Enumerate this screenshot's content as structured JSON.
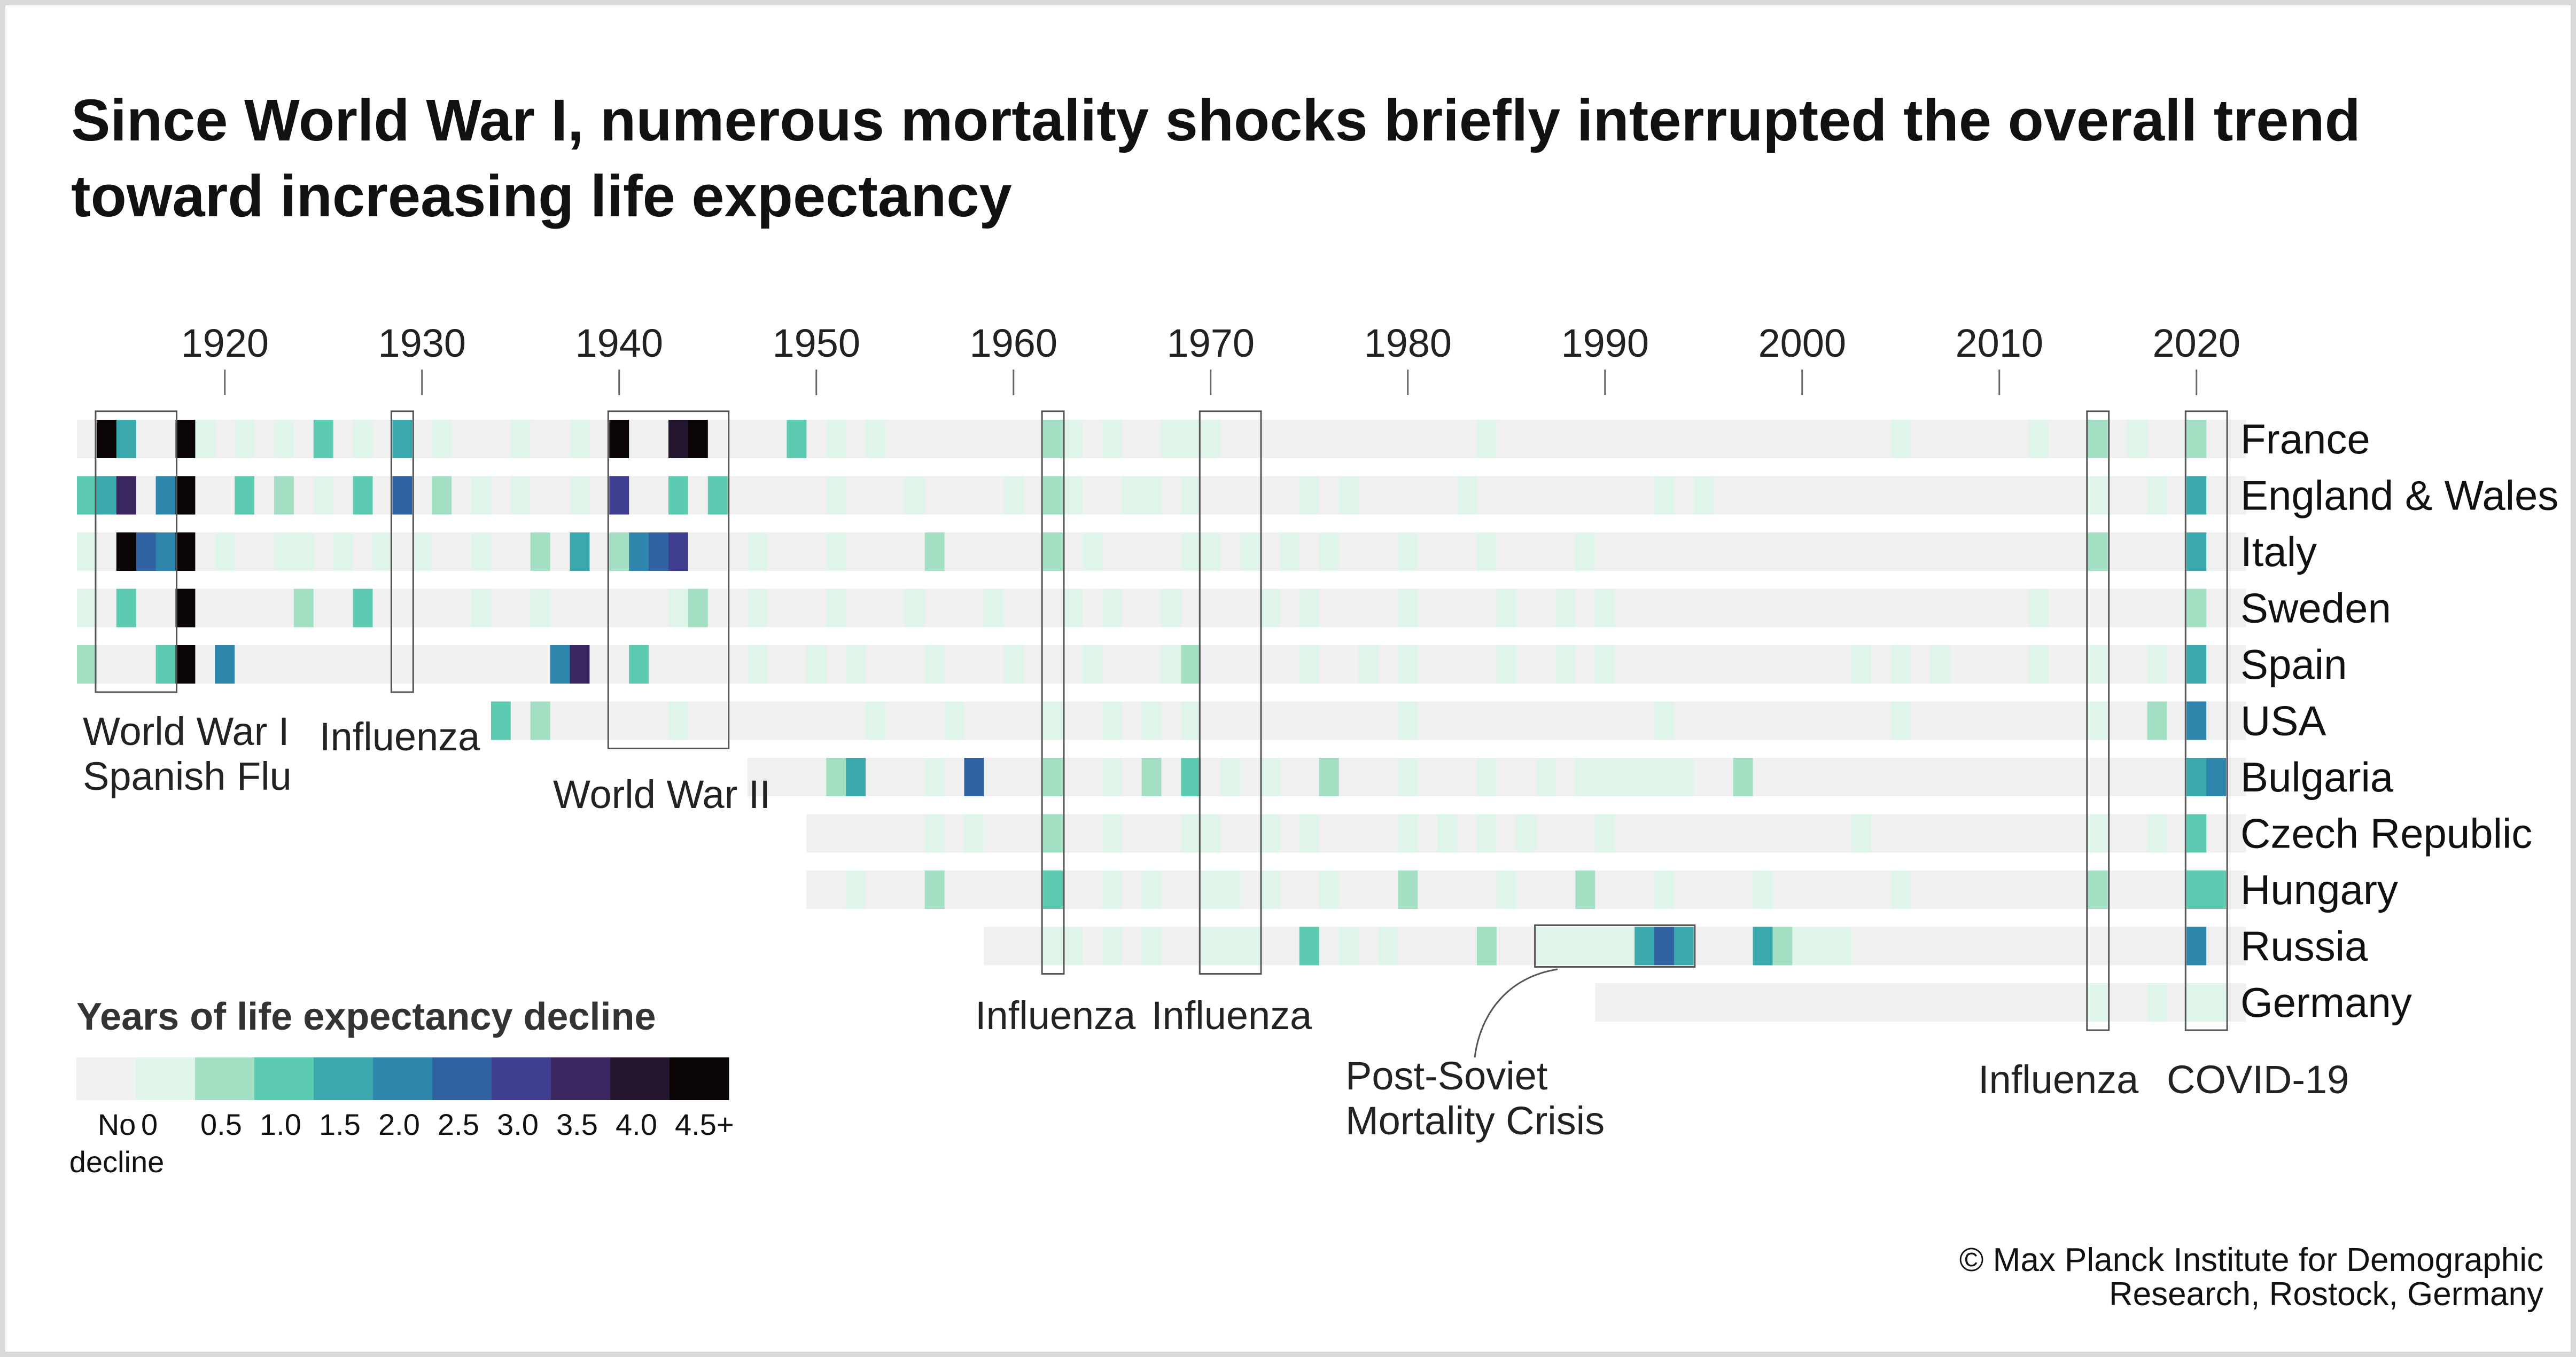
{
  "title": "Since World War I, numerous mortality shocks briefly interrupted the overall trend toward increasing life expectancy",
  "credit": "© Max Planck Institute for Demographic Research, Rostock, Germany",
  "chart_data": {
    "type": "heatmap",
    "x_ticks": [
      1920,
      1930,
      1940,
      1950,
      1960,
      1970,
      1980,
      1990,
      2000,
      2010,
      2020
    ],
    "xlim": [
      1913,
      2022
    ],
    "countries": [
      {
        "name": "France",
        "start": 1913,
        "declines": {
          "1914": 4.5,
          "1915": 1.5,
          "1918": 4.5,
          "1919": 0.0,
          "1921": 0.0,
          "1923": 0.0,
          "1925": 1.0,
          "1927": 0.0,
          "1929": 1.5,
          "1931": 0.0,
          "1935": 0.0,
          "1938": 0.0,
          "1940": 4.5,
          "1943": 4.0,
          "1944": 4.5,
          "1949": 1.0,
          "1951": 0.0,
          "1953": 0.0,
          "1962": 0.5,
          "1963": 0.0,
          "1965": 0.0,
          "1968": 0.0,
          "1969": 0.0,
          "1970": 0.0,
          "1984": 0.0,
          "2005": 0.0,
          "2012": 0.0,
          "2015": 0.5,
          "2017": 0.0,
          "2020": 0.5
        }
      },
      {
        "name": "England & Wales",
        "start": 1913,
        "declines": {
          "1913": 1.0,
          "1914": 1.5,
          "1915": 3.5,
          "1917": 2.0,
          "1918": 4.5,
          "1921": 1.0,
          "1923": 0.5,
          "1925": 0.0,
          "1927": 1.0,
          "1929": 2.5,
          "1931": 0.5,
          "1933": 0.0,
          "1935": 0.0,
          "1938": 0.0,
          "1940": 3.0,
          "1943": 1.0,
          "1945": 1.0,
          "1951": 0.0,
          "1955": 0.0,
          "1960": 0.0,
          "1962": 0.5,
          "1963": 0.0,
          "1966": 0.0,
          "1967": 0.0,
          "1969": 0.0,
          "1975": 0.0,
          "1977": 0.0,
          "1983": 0.0,
          "1993": 0.0,
          "1995": 0.0,
          "2015": 0.0,
          "2018": 0.0,
          "2020": 1.5
        }
      },
      {
        "name": "Italy",
        "start": 1913,
        "declines": {
          "1913": 0.0,
          "1915": 4.5,
          "1916": 2.5,
          "1917": 2.0,
          "1918": 4.5,
          "1920": 0.0,
          "1923": 0.0,
          "1924": 0.0,
          "1926": 0.0,
          "1928": 0.0,
          "1930": 0.0,
          "1933": 0.0,
          "1936": 0.5,
          "1938": 1.5,
          "1940": 0.5,
          "1941": 2.0,
          "1942": 2.5,
          "1943": 3.0,
          "1947": 0.0,
          "1951": 0.0,
          "1956": 0.5,
          "1962": 0.5,
          "1964": 0.0,
          "1969": 0.0,
          "1970": 0.0,
          "1972": 0.0,
          "1974": 0.0,
          "1976": 0.0,
          "1980": 0.0,
          "1984": 0.0,
          "1989": 0.0,
          "2015": 0.5,
          "2020": 1.5
        }
      },
      {
        "name": "Sweden",
        "start": 1913,
        "declines": {
          "1913": 0.0,
          "1915": 1.0,
          "1918": 4.5,
          "1924": 0.5,
          "1927": 1.0,
          "1933": 0.0,
          "1936": 0.0,
          "1943": 0.0,
          "1944": 0.5,
          "1947": 0.0,
          "1951": 0.0,
          "1955": 0.0,
          "1959": 0.0,
          "1963": 0.0,
          "1965": 0.0,
          "1968": 0.0,
          "1973": 0.0,
          "1975": 0.0,
          "1980": 0.0,
          "1985": 0.0,
          "1988": 0.0,
          "1990": 0.0,
          "2012": 0.0,
          "2020": 0.5
        }
      },
      {
        "name": "Spain",
        "start": 1913,
        "declines": {
          "1913": 0.5,
          "1917": 1.0,
          "1918": 4.5,
          "1920": 2.0,
          "1937": 2.0,
          "1938": 3.5,
          "1941": 1.0,
          "1947": 0.0,
          "1950": 0.0,
          "1952": 0.0,
          "1956": 0.0,
          "1960": 0.0,
          "1964": 0.0,
          "1968": 0.0,
          "1969": 0.5,
          "1975": 0.0,
          "1978": 0.0,
          "1980": 0.0,
          "1985": 0.0,
          "1988": 0.0,
          "1990": 0.0,
          "2003": 0.0,
          "2005": 0.0,
          "2007": 0.0,
          "2012": 0.0,
          "2015": 0.0,
          "2018": 0.0,
          "2020": 1.5
        }
      },
      {
        "name": "USA",
        "start": 1934,
        "declines": {
          "1934": 1.0,
          "1936": 0.5,
          "1943": 0.0,
          "1953": 0.0,
          "1957": 0.0,
          "1962": 0.0,
          "1965": 0.0,
          "1967": 0.0,
          "1969": 0.0,
          "1980": 0.0,
          "1993": 0.0,
          "2005": 0.0,
          "2015": 0.0,
          "2018": 0.5,
          "2020": 2.0
        }
      },
      {
        "name": "Bulgaria",
        "start": 1947,
        "declines": {
          "1951": 0.5,
          "1952": 1.5,
          "1956": 0.0,
          "1958": 2.5,
          "1962": 0.5,
          "1965": 0.0,
          "1967": 0.5,
          "1969": 1.0,
          "1971": 0.0,
          "1973": 0.0,
          "1976": 0.5,
          "1980": 0.0,
          "1984": 0.0,
          "1987": 0.0,
          "1989": 0.0,
          "1990": 0.0,
          "1991": 0.0,
          "1992": 0.0,
          "1993": 0.0,
          "1994": 0.0,
          "1997": 0.5,
          "2020": 1.5,
          "2021": 2.0
        }
      },
      {
        "name": "Czech Republic",
        "start": 1950,
        "declines": {
          "1956": 0.0,
          "1958": 0.0,
          "1962": 0.5,
          "1965": 0.0,
          "1969": 0.0,
          "1970": 0.0,
          "1973": 0.0,
          "1975": 0.0,
          "1980": 0.0,
          "1982": 0.0,
          "1984": 0.0,
          "1986": 0.0,
          "1990": 0.0,
          "2003": 0.0,
          "2015": 0.0,
          "2018": 0.0,
          "2020": 1.0
        }
      },
      {
        "name": "Hungary",
        "start": 1950,
        "declines": {
          "1952": 0.0,
          "1956": 0.5,
          "1962": 1.0,
          "1965": 0.0,
          "1967": 0.0,
          "1970": 0.0,
          "1971": 0.0,
          "1973": 0.0,
          "1976": 0.0,
          "1980": 0.5,
          "1985": 0.0,
          "1989": 0.5,
          "1993": 0.0,
          "1998": 0.0,
          "2005": 0.0,
          "2015": 0.5,
          "2020": 1.0,
          "2021": 1.0
        }
      },
      {
        "name": "Russia",
        "start": 1959,
        "declines": {
          "1962": 0.0,
          "1963": 0.0,
          "1965": 0.0,
          "1967": 0.0,
          "1970": 0.0,
          "1971": 0.0,
          "1972": 0.0,
          "1975": 1.0,
          "1977": 0.0,
          "1979": 0.0,
          "1984": 0.5,
          "1987": 0.0,
          "1988": 0.0,
          "1989": 0.0,
          "1990": 0.0,
          "1991": 0.0,
          "1992": 1.5,
          "1993": 2.5,
          "1994": 1.5,
          "1998": 1.5,
          "1999": 0.5,
          "2000": 0.0,
          "2001": 0.0,
          "2002": 0.0,
          "2020": 2.0
        }
      },
      {
        "name": "Germany",
        "start": 1990,
        "declines": {
          "2015": 0.0,
          "2018": 0.0,
          "2020": 0.0,
          "2021": 0.0
        }
      }
    ],
    "annotations": [
      {
        "lines": [
          "World War I",
          "Spanish Flu"
        ]
      },
      {
        "lines": [
          "Influenza"
        ]
      },
      {
        "lines": [
          "World War II"
        ]
      },
      {
        "lines": [
          "Influenza"
        ]
      },
      {
        "lines": [
          "Influenza"
        ]
      },
      {
        "lines": [
          "Post-Soviet",
          "Mortality Crisis"
        ]
      },
      {
        "lines": [
          "Influenza"
        ]
      },
      {
        "lines": [
          "COVID-19"
        ]
      }
    ],
    "legend": {
      "title": "Years of life expectancy decline",
      "labels": [
        "No\ndecline",
        "0",
        "0.5",
        "1.0",
        "1.5",
        "2.0",
        "2.5",
        "3.0",
        "3.5",
        "4.0",
        "4.5+"
      ],
      "colors": [
        "#f0f0f0",
        "#dff5ea",
        "#a3e0c3",
        "#5ccbb1",
        "#3aa8ad",
        "#2e86ac",
        "#3062a2",
        "#3e3d8e",
        "#3b2760",
        "#25162f",
        "#0a0405"
      ]
    }
  }
}
